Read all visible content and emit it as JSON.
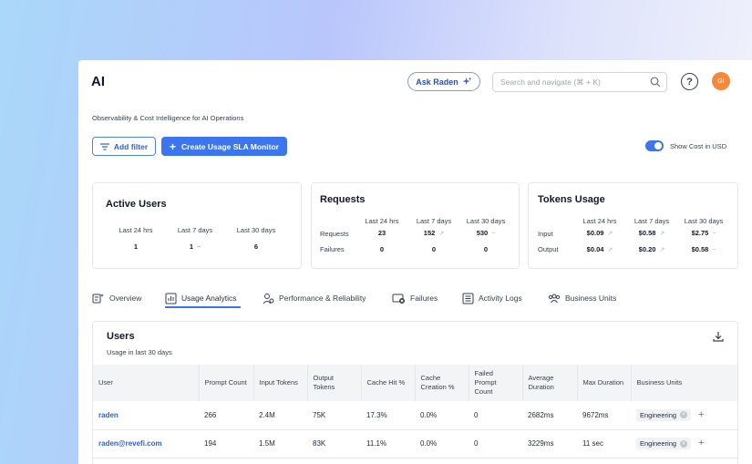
{
  "header": {
    "title": "AI",
    "ask_label": "Ask Raden",
    "search_placeholder": "Search and navigate (⌘ + K)",
    "help_label": "?",
    "avatar_initials": "GI"
  },
  "subtitle": "Observability & Cost Intelligence for AI Operations",
  "toolbar": {
    "add_filter_label": "Add filter",
    "create_label": "Create Usage SLA Monitor",
    "toggle_label": "Show Cost in USD",
    "toggle_on": true
  },
  "cards": {
    "active_users": {
      "title": "Active Users",
      "headers": [
        "Last 24 hrs",
        "Last 7 days",
        "Last 30 days"
      ],
      "values": [
        "1",
        "1",
        "6"
      ]
    },
    "requests": {
      "title": "Requests",
      "headers": [
        "Last 24 hrs",
        "Last 7 days",
        "Last 30 days"
      ],
      "rows": [
        {
          "label": "Requests",
          "values": [
            "23",
            "152",
            "530"
          ]
        },
        {
          "label": "Failures",
          "values": [
            "0",
            "0",
            "0"
          ]
        }
      ]
    },
    "tokens": {
      "title": "Tokens Usage",
      "headers": [
        "Last 24 hrs",
        "Last 7 days",
        "Last 30 days"
      ],
      "rows": [
        {
          "label": "Input",
          "values": [
            "$0.09",
            "$0.58",
            "$2.75"
          ]
        },
        {
          "label": "Output",
          "values": [
            "$0.04",
            "$0.20",
            "$0.58"
          ]
        }
      ]
    }
  },
  "tabs": [
    {
      "label": "Overview",
      "icon": "overview-icon"
    },
    {
      "label": "Usage Analytics",
      "icon": "chart-icon",
      "active": true
    },
    {
      "label": "Performance & Reliability",
      "icon": "performance-icon"
    },
    {
      "label": "Failures",
      "icon": "failure-icon"
    },
    {
      "label": "Activity Logs",
      "icon": "log-icon"
    },
    {
      "label": "Business Units",
      "icon": "group-icon"
    }
  ],
  "users_table": {
    "title": "Users",
    "subtitle": "Usage in last 30 days",
    "columns": [
      "User",
      "Prompt Count",
      "Input Tokens",
      "Output Tokens",
      "Cache Hit %",
      "Cache Creation %",
      "Failed Prompt Count",
      "Average Duration",
      "Max Duration",
      "Business Units"
    ],
    "rows": [
      {
        "user": "raden",
        "prompt": "266",
        "input": "2.4M",
        "output": "75K",
        "cache_hit": "17.3%",
        "cache_creation": "0.0%",
        "failed": "0",
        "avg": "2682ms",
        "max": "9672ms",
        "unit": "Engineering"
      },
      {
        "user": "raden@revefi.com",
        "prompt": "194",
        "input": "1.5M",
        "output": "83K",
        "cache_hit": "11.1%",
        "cache_creation": "0.0%",
        "failed": "0",
        "avg": "3229ms",
        "max": "11 sec",
        "unit": "Engineering"
      }
    ]
  }
}
